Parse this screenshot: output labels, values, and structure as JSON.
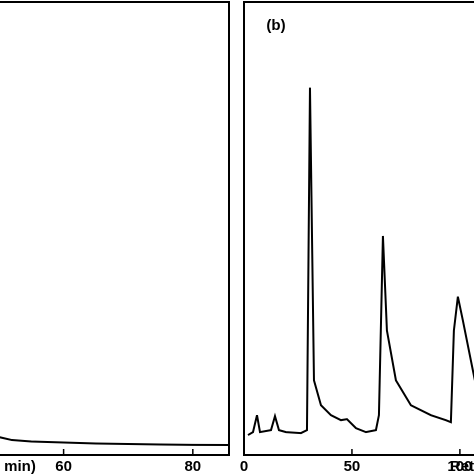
{
  "chart_data": [
    {
      "type": "line",
      "xlabel": "min)",
      "x": [
        50,
        52,
        55,
        60,
        65,
        70,
        75,
        80,
        85.6
      ],
      "series": [
        {
          "color": "#000000",
          "values": [
            3.96,
            3.3,
            2.97,
            2.75,
            2.53,
            2.42,
            2.31,
            2.24,
            2.2
          ]
        }
      ],
      "xlim": [
        50,
        85.6
      ],
      "xticks": [
        60,
        80
      ],
      "ylim": [
        0,
        100
      ]
    },
    {
      "type": "line",
      "title": "(b)",
      "xlabel": "Ret",
      "x": [
        1.85,
        4.17,
        6.02,
        7.41,
        12.5,
        14.35,
        16.2,
        19.44,
        26.39,
        29.17,
        30.56,
        32.41,
        35.65,
        40.28,
        44.91,
        47.69,
        51.85,
        56.48,
        61.11,
        62.5,
        64.35,
        66.2,
        70.37,
        77.31,
        86.57,
        93.52,
        95.83,
        97.22,
        99.07,
        101.39,
        105.09,
        106.94
      ],
      "series": [
        {
          "color": "#000000",
          "values": [
            4.4,
            5.05,
            8.79,
            5.05,
            5.49,
            8.57,
            5.49,
            5.05,
            4.84,
            5.49,
            81.1,
            16.48,
            10.99,
            8.79,
            7.69,
            7.91,
            5.93,
            5.05,
            5.49,
            8.79,
            48.35,
            27.47,
            16.48,
            10.99,
            8.79,
            7.69,
            7.25,
            27.47,
            34.95,
            29.67,
            20.88,
            16.48
          ]
        }
      ],
      "xlim": [
        0,
        107
      ],
      "xticks": [
        0,
        50,
        100
      ],
      "ylim": [
        0,
        100
      ]
    }
  ]
}
